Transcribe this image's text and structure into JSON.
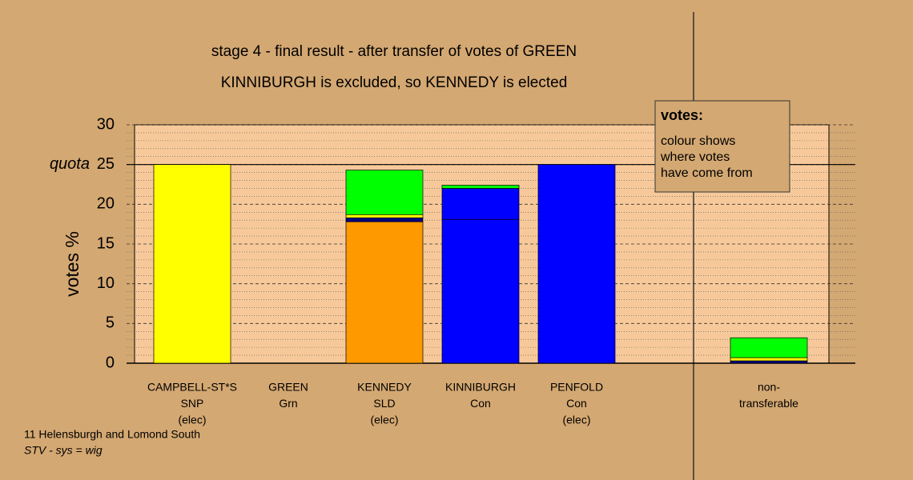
{
  "chart_data": {
    "type": "bar",
    "stacked": true,
    "title": "stage 4 - final result - after transfer of votes of GREEN",
    "subtitle": "KINNIBURGH is excluded, so KENNEDY is elected",
    "y_label": "votes %",
    "categories": [
      [
        "CAMPBELL-ST*S",
        "SNP",
        "(elec)"
      ],
      [
        "GREEN",
        "Grn"
      ],
      [
        "KENNEDY",
        "SLD",
        "(elec)"
      ],
      [
        "KINNIBURGH",
        "Con"
      ],
      [
        "PENFOLD",
        "Con",
        "(elec)"
      ],
      null,
      [
        "non-",
        "transferable"
      ]
    ],
    "series": [
      {
        "color": "#ffff00",
        "values": [
          25,
          0,
          0,
          0,
          0,
          null,
          0
        ]
      },
      {
        "color": "#ff9900",
        "values": [
          0,
          0,
          17.8,
          0,
          0,
          null,
          0
        ]
      },
      {
        "color": "#0000ff",
        "values": [
          0,
          0,
          0,
          18.1,
          25,
          null,
          0
        ]
      },
      {
        "color": "#0000ff",
        "values": [
          0,
          0,
          0,
          3.9,
          0,
          null,
          0
        ]
      },
      {
        "color": "#000080",
        "values": [
          0,
          0,
          0.5,
          0,
          0,
          null,
          0.3
        ]
      },
      {
        "color": "#ffff00",
        "values": [
          0,
          0,
          0.4,
          0,
          0,
          null,
          0.4
        ]
      },
      {
        "color": "#00ff00",
        "values": [
          0,
          0,
          5.6,
          0.4,
          0,
          null,
          2.5
        ]
      }
    ],
    "ylim": [
      0,
      30
    ],
    "yticks": [
      0,
      5,
      10,
      15,
      20,
      25,
      30
    ],
    "minor_yticks": [
      1,
      2,
      3,
      4,
      6,
      7,
      8,
      9,
      11,
      12,
      13,
      14,
      16,
      17,
      18,
      19,
      21,
      22,
      23,
      24,
      26,
      27,
      28,
      29
    ],
    "grid": true,
    "quota": 25,
    "quota_label": "quota",
    "note": {
      "title": "votes:",
      "lines": [
        "colour shows",
        "where votes",
        "have come from"
      ]
    },
    "footer": [
      "11 Helensburgh and Lomond South",
      "STV - sys = wig"
    ]
  }
}
